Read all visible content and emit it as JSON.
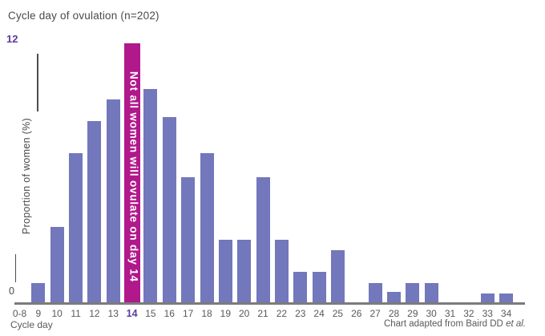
{
  "title": "Cycle day of ovulation (n=202)",
  "y_axis": {
    "max_label": "12",
    "min_label": "0",
    "axis_label": "Proportion of women (%)"
  },
  "x_axis": {
    "label": "Cycle day"
  },
  "footer": {
    "attribution_prefix": "Chart adapted from Baird DD ",
    "attribution_italic": "et al."
  },
  "colors": {
    "bar": "#7377bb",
    "highlight_bar": "#b1188c",
    "accent_purple": "#5b3a9c",
    "text_gray": "#4a4a4a",
    "tick_gray": "#595959",
    "axis_line_gray": "#7b7b7b"
  },
  "chart_data": {
    "type": "bar",
    "title": "Cycle day of ovulation (n=202)",
    "xlabel": "Cycle day",
    "ylabel": "Proportion of women (%)",
    "ylim": [
      0,
      12
    ],
    "grid": false,
    "legend": "none",
    "categories": [
      "0-8",
      "9",
      "10",
      "11",
      "12",
      "13",
      "14",
      "15",
      "16",
      "17",
      "18",
      "19",
      "20",
      "21",
      "22",
      "23",
      "24",
      "25",
      "26",
      "27",
      "28",
      "29",
      "30",
      "31",
      "32",
      "33",
      "34"
    ],
    "values": [
      0,
      0.9,
      3.5,
      6.9,
      8.4,
      9.4,
      12,
      9.9,
      8.6,
      5.8,
      6.9,
      2.9,
      2.9,
      5.8,
      2.9,
      1.4,
      1.4,
      2.4,
      0,
      0.9,
      0.5,
      0.9,
      0.9,
      0,
      0,
      0.4,
      0.4
    ],
    "highlight": {
      "category": "14",
      "value": 12,
      "color": "#b1188c",
      "label": "Not all women will ovulate on day 14"
    }
  }
}
